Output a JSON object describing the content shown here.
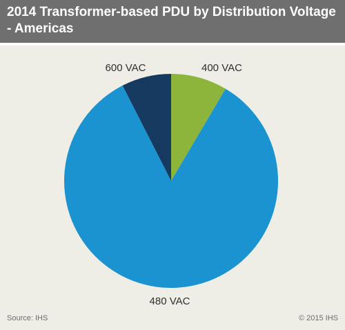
{
  "chart_data": {
    "type": "pie",
    "title": "2014 Transformer-based PDU by Distribution Voltage - Americas",
    "categories": [
      "400 VAC",
      "480 VAC",
      "600 VAC"
    ],
    "values": [
      8.5,
      84.0,
      7.5
    ],
    "colors": [
      "#8db53c",
      "#1a93d0",
      "#163a5f"
    ],
    "legend": "none",
    "start": "12 o'clock",
    "direction": "clockwise"
  },
  "footer": {
    "source": "Source: IHS",
    "copyright": "© 2015 IHS"
  }
}
